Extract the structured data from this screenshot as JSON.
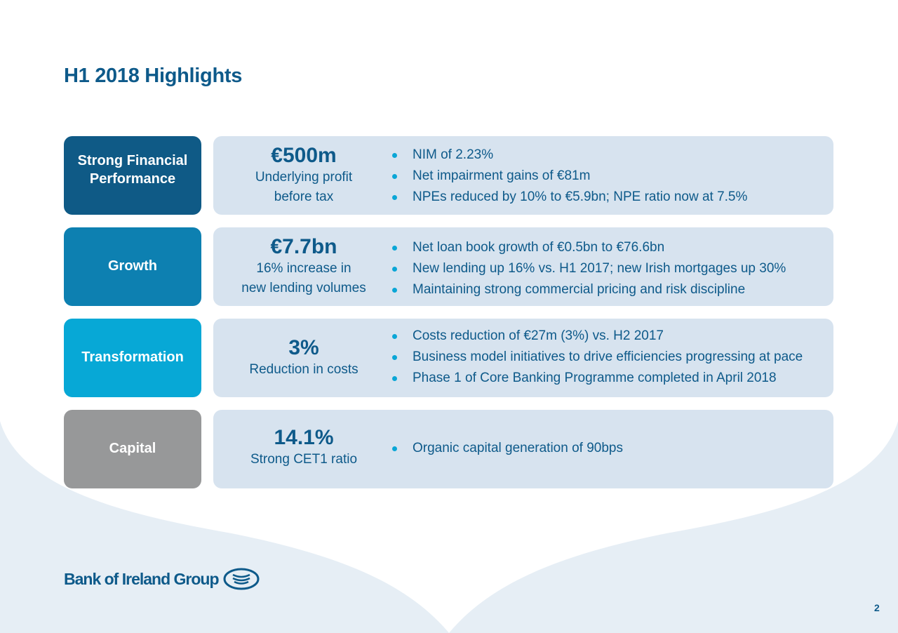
{
  "slide": {
    "title": "H1 2018 Highlights",
    "page_number": "2"
  },
  "colors": {
    "title": "#0e5a8a",
    "panel": "#d7e3ef",
    "bullet": "#0aa6d6",
    "background_wave": "#e6eef5"
  },
  "rows": [
    {
      "label_lines": [
        "Strong Financial",
        "Performance"
      ],
      "color": "#0f5a86",
      "metric_value": "€500m",
      "metric_desc_lines": [
        "Underlying profit",
        "before tax"
      ],
      "bullets": [
        "NIM of 2.23%",
        "Net impairment gains of €81m",
        "NPEs reduced by 10% to €5.9bn; NPE ratio now at 7.5%"
      ]
    },
    {
      "label_lines": [
        "Growth"
      ],
      "color": "#0d80b1",
      "metric_value": "€7.7bn",
      "metric_desc_lines": [
        "16% increase in",
        "new lending volumes"
      ],
      "bullets": [
        "Net loan book growth of €0.5bn to €76.6bn",
        "New lending up 16% vs. H1 2017; new Irish mortgages up 30%",
        "Maintaining strong commercial pricing and risk discipline"
      ]
    },
    {
      "label_lines": [
        "Transformation"
      ],
      "color": "#07a8d6",
      "metric_value": "3%",
      "metric_desc_lines": [
        "Reduction in costs"
      ],
      "bullets": [
        "Costs reduction of €27m (3%) vs. H2 2017",
        "Business model initiatives to drive efficiencies progressing at pace",
        "Phase 1 of Core Banking Programme completed in April 2018"
      ]
    },
    {
      "label_lines": [
        "Capital"
      ],
      "color": "#979899",
      "metric_value": "14.1%",
      "metric_desc_lines": [
        "Strong CET1 ratio"
      ],
      "bullets": [
        "Organic capital generation of 90bps"
      ]
    }
  ],
  "logo": {
    "text": "Bank of Ireland Group",
    "icon": "bank-of-ireland-emblem-icon"
  }
}
